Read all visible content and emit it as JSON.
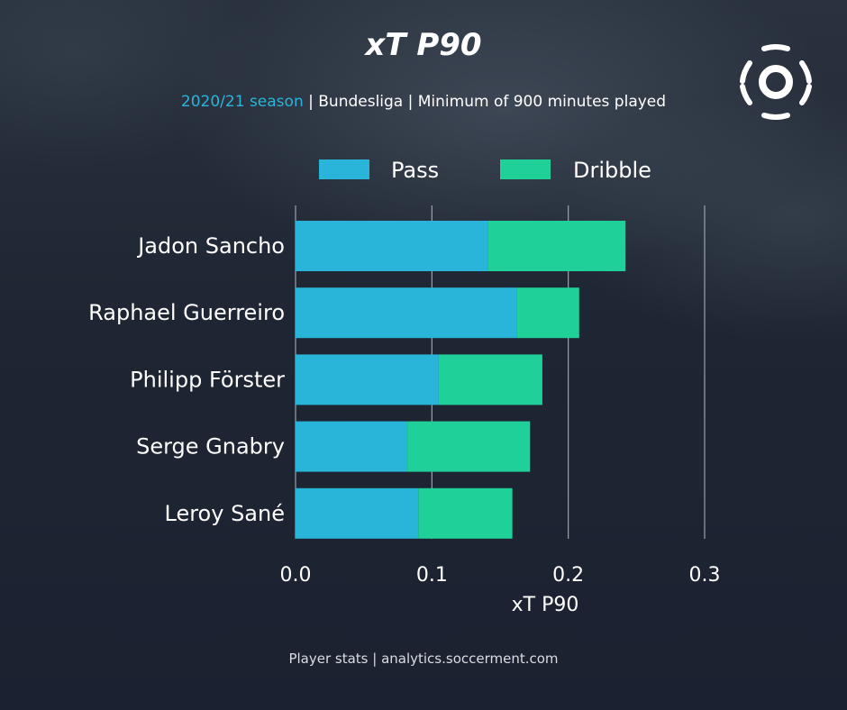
{
  "title": "xT P90",
  "subtitle": {
    "season": "2020/21 season",
    "rest": " | Bundesliga | Minimum of 900 minutes played"
  },
  "footer": "Player stats | analytics.soccerment.com",
  "colors": {
    "pass": "#29b5d9",
    "dribble": "#1fd198",
    "grid": "#9aa2ad",
    "text": "#ffffff"
  },
  "chart_data": {
    "type": "bar",
    "orientation": "horizontal",
    "stacked": true,
    "categories": [
      "Jadon Sancho",
      "Raphael Guerreiro",
      "Philipp Förster",
      "Serge Gnabry",
      "Leroy Sané"
    ],
    "series": [
      {
        "name": "Pass",
        "values": [
          0.141,
          0.162,
          0.105,
          0.082,
          0.09
        ]
      },
      {
        "name": "Dribble",
        "values": [
          0.101,
          0.046,
          0.076,
          0.09,
          0.069
        ]
      }
    ],
    "xlabel": "xT P90",
    "xlim": [
      0,
      0.3
    ],
    "xticks": [
      "0.0",
      "0.1",
      "0.2",
      "0.3"
    ],
    "grid": true,
    "legend_position": "top"
  }
}
